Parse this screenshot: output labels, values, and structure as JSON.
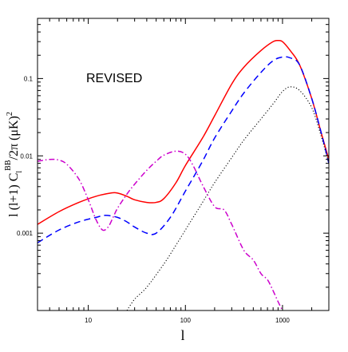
{
  "chart_data": {
    "type": "line",
    "annotation": "REVISED",
    "xlabel": "l",
    "ylabel": {
      "prefix": "l (l+1) C",
      "subscript": "l",
      "superscript": "BB",
      "suffix": "/2π (μK)",
      "power": "2"
    },
    "xscale": "log",
    "yscale": "log",
    "xlim": [
      3,
      3000
    ],
    "ylim": [
      0.0001,
      0.6
    ],
    "xticks": [
      10,
      100,
      1000
    ],
    "xtick_labels": [
      "10",
      "100",
      "1000"
    ],
    "yticks": [
      0.001,
      0.01,
      0.1
    ],
    "ytick_labels": [
      "0.001",
      "0.01",
      "0.1"
    ],
    "grid": false,
    "series": [
      {
        "color": "#ff0000",
        "dash": "solid",
        "x": [
          3,
          5,
          8,
          12,
          17,
          20,
          25,
          30,
          40,
          50,
          60,
          80,
          100,
          150,
          200,
          300,
          400,
          600,
          800,
          900,
          1000,
          1200,
          1500,
          2000,
          2500,
          3000
        ],
        "y": [
          0.0013,
          0.0019,
          0.0025,
          0.003,
          0.0033,
          0.0033,
          0.003,
          0.0027,
          0.0025,
          0.0025,
          0.0028,
          0.0045,
          0.0075,
          0.017,
          0.033,
          0.085,
          0.14,
          0.23,
          0.3,
          0.31,
          0.3,
          0.23,
          0.15,
          0.055,
          0.02,
          0.009
        ]
      },
      {
        "color": "#0000ff",
        "dash": "dashed",
        "x": [
          3,
          5,
          8,
          12,
          15,
          20,
          25,
          30,
          40,
          50,
          70,
          100,
          150,
          200,
          300,
          400,
          600,
          800,
          1000,
          1200,
          1500,
          2000,
          2500,
          3000
        ],
        "y": [
          0.00075,
          0.0011,
          0.0014,
          0.0016,
          0.0017,
          0.0016,
          0.0014,
          0.0012,
          0.001,
          0.001,
          0.0016,
          0.0035,
          0.0085,
          0.017,
          0.038,
          0.065,
          0.12,
          0.17,
          0.19,
          0.185,
          0.15,
          0.055,
          0.02,
          0.008
        ]
      },
      {
        "color": "#000000",
        "dash": "dotted",
        "x": [
          25,
          30,
          40,
          60,
          80,
          100,
          150,
          200,
          300,
          400,
          600,
          800,
          1000,
          1200,
          1500,
          2000,
          2500,
          3000
        ],
        "y": [
          0.0001,
          0.00014,
          0.0002,
          0.0004,
          0.0007,
          0.0011,
          0.0025,
          0.0045,
          0.0095,
          0.016,
          0.03,
          0.047,
          0.068,
          0.078,
          0.07,
          0.042,
          0.018,
          0.008
        ]
      },
      {
        "color": "#cc00cc",
        "dash": "dashdot",
        "x": [
          3,
          4,
          5,
          6,
          8,
          10,
          12,
          14,
          16,
          18,
          20,
          25,
          30,
          40,
          50,
          60,
          80,
          100,
          120,
          150,
          200,
          250,
          300,
          400,
          500,
          600,
          700,
          800,
          900,
          1000
        ],
        "y": [
          0.0085,
          0.009,
          0.0088,
          0.0078,
          0.005,
          0.0027,
          0.0015,
          0.0011,
          0.0012,
          0.0016,
          0.0021,
          0.0032,
          0.0043,
          0.0065,
          0.0085,
          0.0102,
          0.0115,
          0.0105,
          0.0075,
          0.0042,
          0.0022,
          0.002,
          0.0013,
          0.0006,
          0.00045,
          0.0003,
          0.00025,
          0.00018,
          0.00013,
          0.0001
        ]
      }
    ]
  }
}
